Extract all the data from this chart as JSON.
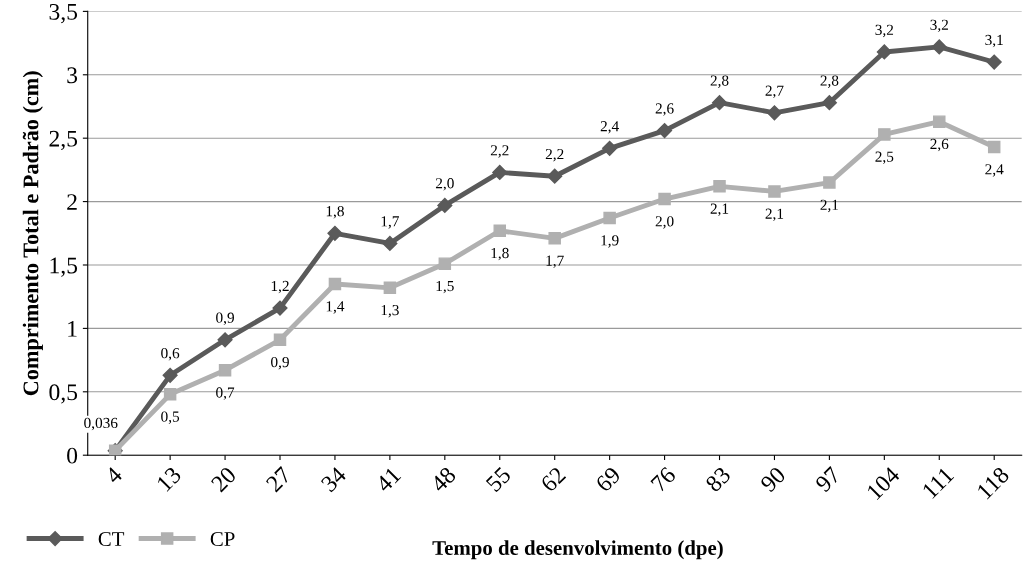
{
  "chart_data": {
    "type": "line",
    "xlabel": "Tempo de desenvolvimento (dpe)",
    "ylabel": "Comprimento Total e Padrão (cm)",
    "categories": [
      "4",
      "13",
      "20",
      "27",
      "34",
      "41",
      "48",
      "55",
      "62",
      "69",
      "76",
      "83",
      "90",
      "97",
      "104",
      "111",
      "118"
    ],
    "series": [
      {
        "name": "CT",
        "color": "#5a5a5a",
        "marker": "diamond",
        "values": [
          0.036,
          0.63,
          0.91,
          1.16,
          1.75,
          1.67,
          1.97,
          2.23,
          2.2,
          2.42,
          2.56,
          2.78,
          2.7,
          2.78,
          3.18,
          3.22,
          3.1
        ],
        "value_labels": [
          "0,036",
          "0,6",
          "0,9",
          "1,2",
          "1,8",
          "1,7",
          "2,0",
          "2,2",
          "2,2",
          "2,4",
          "2,6",
          "2,8",
          "2,7",
          "2,8",
          "3,2",
          "3,2",
          "3,1"
        ]
      },
      {
        "name": "CP",
        "color": "#b0b0b0",
        "marker": "square",
        "values": [
          0.036,
          0.48,
          0.67,
          0.91,
          1.35,
          1.32,
          1.51,
          1.77,
          1.71,
          1.87,
          2.02,
          2.12,
          2.08,
          2.15,
          2.53,
          2.63,
          2.43
        ],
        "value_labels": [
          null,
          "0,5",
          "0,7",
          "0,9",
          "1,4",
          "1,3",
          "1,5",
          "1,8",
          "1,7",
          "1,9",
          "2,0",
          "2,1",
          "2,1",
          "2,1",
          "2,5",
          "2,6",
          "2,4"
        ]
      }
    ],
    "ylim": [
      0,
      3.5
    ],
    "yticks": [
      0,
      {
        "value": 0.5,
        "label": "0,5"
      },
      1,
      {
        "value": 1.5,
        "label": "1,5"
      },
      2,
      {
        "value": 2.5,
        "label": "2,5"
      },
      3,
      {
        "value": 3.5,
        "label": "3,5"
      }
    ],
    "grid": "y",
    "legend": "bottom left",
    "line_style": "solid"
  }
}
